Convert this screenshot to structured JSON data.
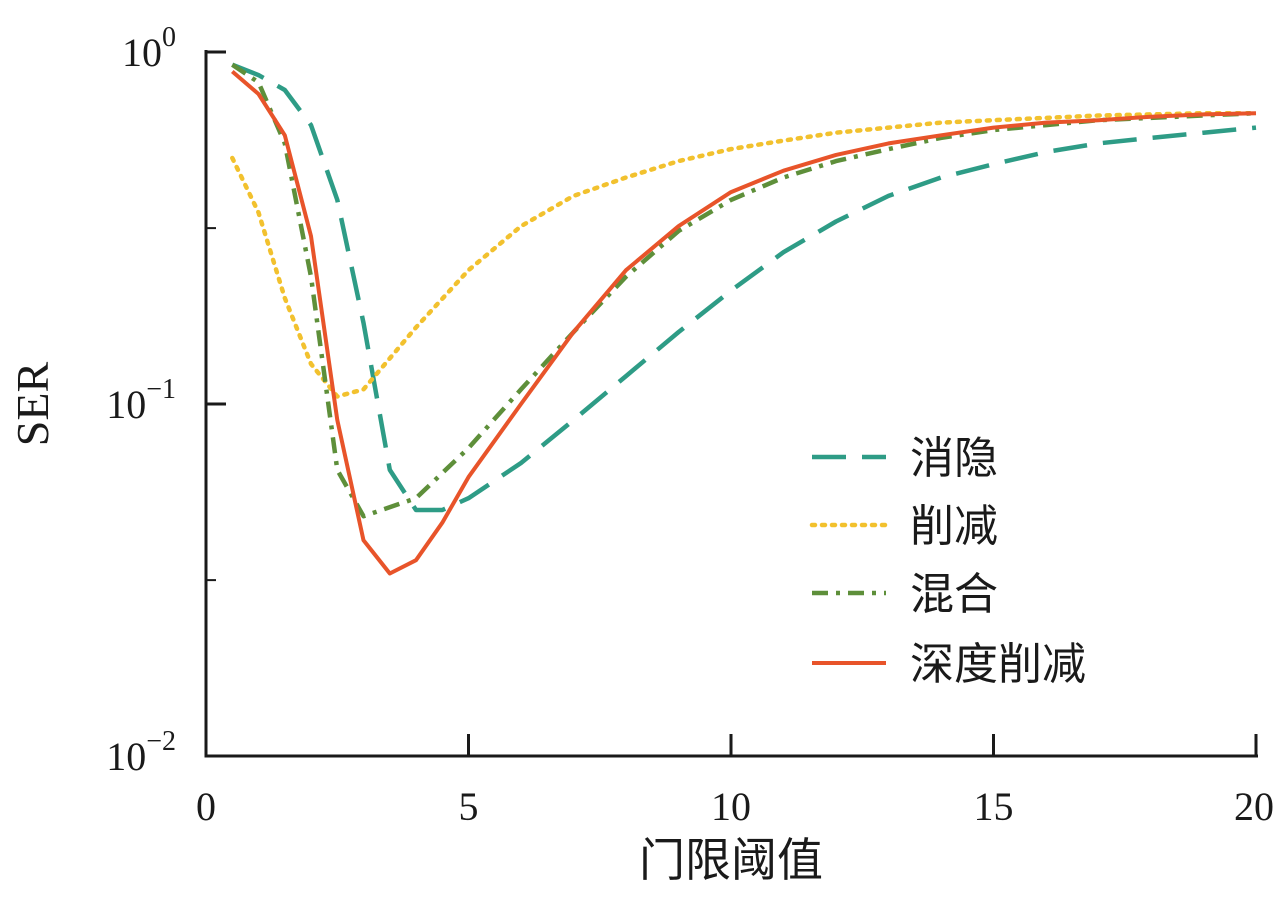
{
  "chart_data": {
    "type": "line",
    "xlabel": "门限阈值",
    "ylabel": "SER",
    "xlim": [
      0,
      20
    ],
    "ylim": [
      0.01,
      1
    ],
    "yscale": "log",
    "xticks": [
      "0",
      "5",
      "10",
      "15",
      "20"
    ],
    "yticks": [
      {
        "base": "10",
        "exp": "0"
      },
      {
        "base": "10",
        "exp": "−1"
      },
      {
        "base": "10",
        "exp": "−2"
      }
    ],
    "legend_position": "center-right",
    "series": [
      {
        "name": "消隐",
        "color": "#2e9c86",
        "dash": "dashed",
        "points": [
          [
            0.5,
            0.92
          ],
          [
            1,
            0.86
          ],
          [
            1.5,
            0.78
          ],
          [
            2,
            0.62
          ],
          [
            2.5,
            0.38
          ],
          [
            3,
            0.17
          ],
          [
            3.5,
            0.065
          ],
          [
            4,
            0.05
          ],
          [
            4.5,
            0.05
          ],
          [
            5,
            0.054
          ],
          [
            6,
            0.068
          ],
          [
            7,
            0.09
          ],
          [
            8,
            0.12
          ],
          [
            9,
            0.16
          ],
          [
            10,
            0.21
          ],
          [
            11,
            0.27
          ],
          [
            12,
            0.33
          ],
          [
            13,
            0.39
          ],
          [
            14,
            0.44
          ],
          [
            15,
            0.48
          ],
          [
            16,
            0.52
          ],
          [
            17,
            0.55
          ],
          [
            18,
            0.57
          ],
          [
            19,
            0.59
          ],
          [
            20,
            0.61
          ]
        ]
      },
      {
        "name": "削减",
        "color": "#f2c12e",
        "dash": "dotted",
        "points": [
          [
            0.5,
            0.5
          ],
          [
            1,
            0.35
          ],
          [
            1.5,
            0.2
          ],
          [
            2,
            0.13
          ],
          [
            2.5,
            0.105
          ],
          [
            3,
            0.11
          ],
          [
            4,
            0.165
          ],
          [
            5,
            0.24
          ],
          [
            6,
            0.32
          ],
          [
            7,
            0.39
          ],
          [
            8,
            0.44
          ],
          [
            9,
            0.49
          ],
          [
            10,
            0.53
          ],
          [
            11,
            0.56
          ],
          [
            12,
            0.59
          ],
          [
            13,
            0.61
          ],
          [
            14,
            0.63
          ],
          [
            15,
            0.64
          ],
          [
            16,
            0.65
          ],
          [
            17,
            0.66
          ],
          [
            18,
            0.665
          ],
          [
            19,
            0.67
          ],
          [
            20,
            0.67
          ]
        ]
      },
      {
        "name": "混合",
        "color": "#5e8f3a",
        "dash": "dashdot",
        "points": [
          [
            0.5,
            0.92
          ],
          [
            1,
            0.82
          ],
          [
            1.5,
            0.55
          ],
          [
            2,
            0.23
          ],
          [
            2.5,
            0.065
          ],
          [
            3,
            0.048
          ],
          [
            4,
            0.054
          ],
          [
            5,
            0.075
          ],
          [
            6,
            0.11
          ],
          [
            7,
            0.16
          ],
          [
            8,
            0.23
          ],
          [
            9,
            0.31
          ],
          [
            10,
            0.38
          ],
          [
            11,
            0.44
          ],
          [
            12,
            0.49
          ],
          [
            13,
            0.53
          ],
          [
            14,
            0.57
          ],
          [
            15,
            0.6
          ],
          [
            16,
            0.62
          ],
          [
            17,
            0.64
          ],
          [
            18,
            0.65
          ],
          [
            19,
            0.66
          ],
          [
            20,
            0.67
          ]
        ]
      },
      {
        "name": "深度削减",
        "color": "#e8542a",
        "dash": "solid",
        "points": [
          [
            0.5,
            0.88
          ],
          [
            1,
            0.76
          ],
          [
            1.5,
            0.58
          ],
          [
            2,
            0.3
          ],
          [
            2.5,
            0.09
          ],
          [
            3,
            0.041
          ],
          [
            3.5,
            0.033
          ],
          [
            4,
            0.036
          ],
          [
            4.5,
            0.046
          ],
          [
            5,
            0.062
          ],
          [
            6,
            0.1
          ],
          [
            7,
            0.16
          ],
          [
            8,
            0.24
          ],
          [
            9,
            0.32
          ],
          [
            10,
            0.4
          ],
          [
            11,
            0.46
          ],
          [
            12,
            0.51
          ],
          [
            13,
            0.55
          ],
          [
            14,
            0.58
          ],
          [
            15,
            0.61
          ],
          [
            16,
            0.63
          ],
          [
            17,
            0.64
          ],
          [
            18,
            0.655
          ],
          [
            19,
            0.665
          ],
          [
            20,
            0.67
          ]
        ]
      }
    ]
  }
}
